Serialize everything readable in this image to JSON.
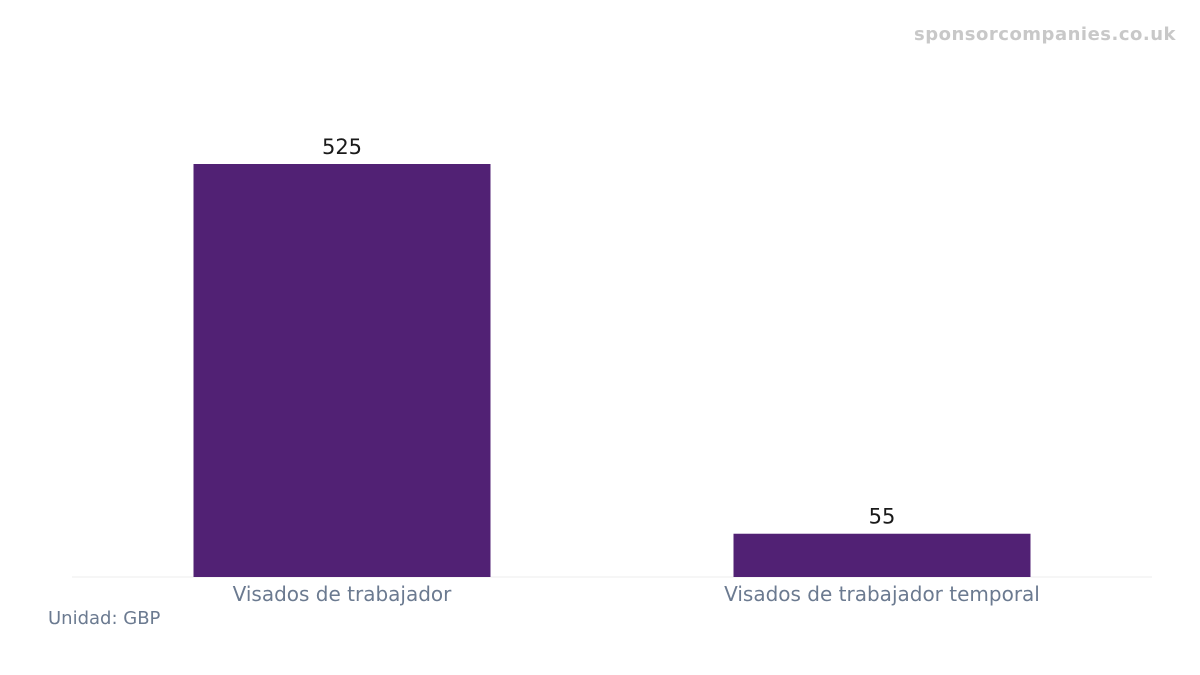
{
  "watermark": "sponsorcompanies.co.uk",
  "unit_note": "Unidad: GBP",
  "colors": {
    "bar": "#512174",
    "baseline": "#eeeeee"
  },
  "chart_data": {
    "type": "bar",
    "categories": [
      "Visados de trabajador",
      "Visados de trabajador temporal"
    ],
    "values": [
      525,
      55
    ],
    "data_labels": [
      "525",
      "55"
    ],
    "title": "",
    "xlabel": "",
    "ylabel": "",
    "ylim": [
      0,
      525
    ],
    "grid": false,
    "legend": "none"
  }
}
